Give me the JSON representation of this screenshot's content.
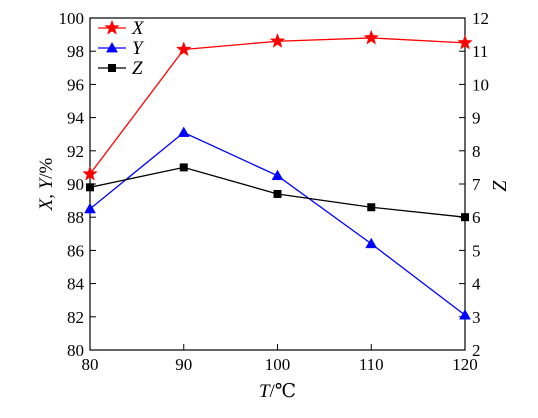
{
  "chart_data": {
    "type": "line",
    "x": [
      80,
      90,
      100,
      110,
      120
    ],
    "xlabel": {
      "var": "T",
      "unit": "/℃"
    },
    "xlim": [
      80,
      120
    ],
    "xticks": [
      80,
      90,
      100,
      110,
      120
    ],
    "ylabel_left": {
      "vars": "X, Y",
      "unit": "/%"
    },
    "ylim_left": [
      80,
      100
    ],
    "yticks_left": [
      80,
      82,
      84,
      86,
      88,
      90,
      92,
      94,
      96,
      98,
      100
    ],
    "ylabel_right": "Z",
    "ylim_right": [
      2,
      12
    ],
    "yticks_right": [
      2,
      3,
      4,
      5,
      6,
      7,
      8,
      9,
      10,
      11,
      12
    ],
    "grid": false,
    "legend_position": "top-left",
    "series": [
      {
        "name": "X",
        "axis": "left",
        "color": "#ff0000",
        "marker": "star",
        "values": [
          90.6,
          98.1,
          98.6,
          98.8,
          98.5
        ]
      },
      {
        "name": "Y",
        "axis": "left",
        "color": "#0000ff",
        "marker": "triangle",
        "values": [
          88.5,
          93.1,
          90.5,
          86.4,
          82.1
        ]
      },
      {
        "name": "Z",
        "axis": "right",
        "color": "#000000",
        "marker": "square",
        "values": [
          6.9,
          7.5,
          6.7,
          6.3,
          6.0
        ]
      }
    ]
  }
}
